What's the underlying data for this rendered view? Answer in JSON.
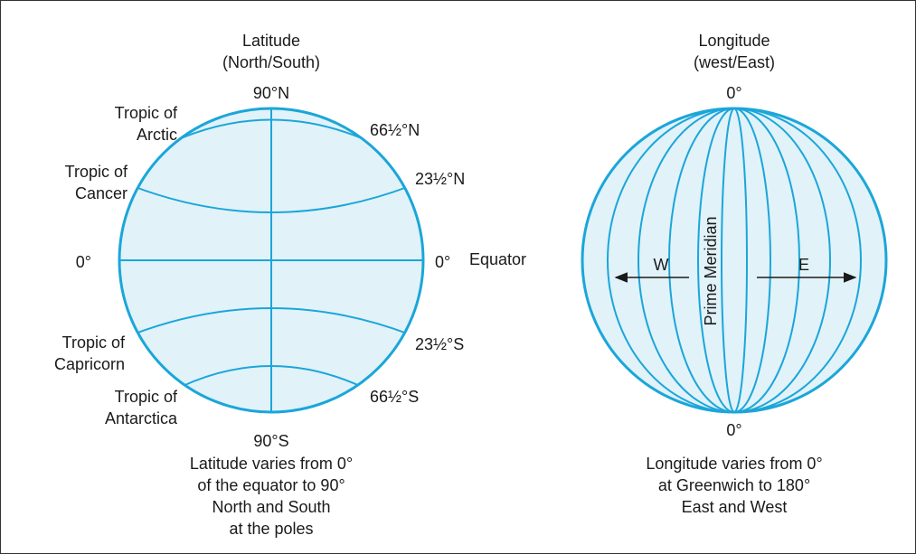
{
  "colors": {
    "globe_fill": "#e1f2f9",
    "globe_line": "#1ba6d9",
    "text": "#1a1a1a",
    "arrow": "#1a1a1a"
  },
  "latitude": {
    "title_line1": "Latitude",
    "title_line2": "(North/South)",
    "north_pole_label": "90°N",
    "south_pole_label": "90°S",
    "left_labels": {
      "arctic_line1": "Tropic of",
      "arctic_line2": "Arctic",
      "cancer_line1": "Tropic of",
      "cancer_line2": "Cancer",
      "equator_left": "0°",
      "capricorn_line1": "Tropic of",
      "capricorn_line2": "Capricorn",
      "antarctica_line1": "Tropic of",
      "antarctica_line2": "Antarctica"
    },
    "right_labels": {
      "n66": "66½°N",
      "n23": "23½°N",
      "equator_right": "0°",
      "equator_name": "Equator",
      "s23": "23½°S",
      "s66": "66½°S"
    },
    "caption": [
      "Latitude varies from 0°",
      "of the equator to 90°",
      "North and South",
      "at the poles"
    ]
  },
  "longitude": {
    "title_line1": "Longitude",
    "title_line2": "(west/East)",
    "top_label": "0°",
    "bottom_label": "0°",
    "prime_meridian_label": "Prime Meridian",
    "west_label": "W",
    "east_label": "E",
    "caption": [
      "Longitude varies from 0°",
      "at Greenwich to 180°",
      "East and West"
    ]
  }
}
